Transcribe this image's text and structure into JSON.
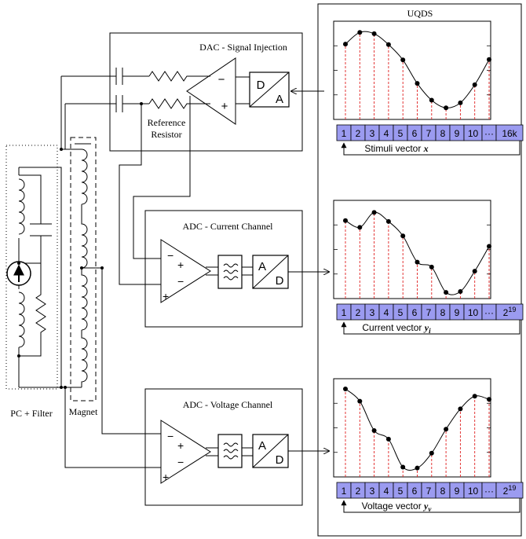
{
  "labels": {
    "uqds": "UQDS",
    "dac": "DAC - Signal Injection",
    "adc_current": "ADC - Current Channel",
    "adc_voltage": "ADC - Voltage Channel",
    "ref1": "Reference",
    "ref2": "Resistor",
    "pc_filter": "PC + Filter",
    "magnet": "Magnet"
  },
  "converters": {
    "dac_top": "D",
    "dac_bottom": "A",
    "adc1_top": "A",
    "adc1_bottom": "D",
    "adc2_top": "A",
    "adc2_bottom": "D"
  },
  "opamp_signs": {
    "minus": "−",
    "plus": "+"
  },
  "vectors": [
    {
      "caption": "Stimuli vector",
      "symbol": "x",
      "subscript": "",
      "cells": [
        "1",
        "2",
        "3",
        "4",
        "5",
        "6",
        "7",
        "8",
        "9",
        "10",
        "···",
        "16k"
      ],
      "samples": [
        0.58,
        0.84,
        0.81,
        0.57,
        0.23,
        -0.29,
        -0.66,
        -0.83,
        -0.72,
        -0.32,
        0.24
      ]
    },
    {
      "caption": "Current vector",
      "symbol": "y",
      "subscript": "i",
      "cells": [
        "1",
        "2",
        "3",
        "4",
        "5",
        "6",
        "7",
        "8",
        "9",
        "10",
        "···",
        "2^19"
      ],
      "samples": [
        0.64,
        0.49,
        0.82,
        0.62,
        0.3,
        -0.28,
        -0.39,
        -0.95,
        -0.93,
        -0.48,
        0.07
      ]
    },
    {
      "caption": "Voltage vector",
      "symbol": "y",
      "subscript": "v",
      "cells": [
        "1",
        "2",
        "3",
        "4",
        "5",
        "6",
        "7",
        "8",
        "9",
        "10",
        "···",
        "2^19"
      ],
      "samples": [
        0.86,
        0.59,
        -0.06,
        -0.25,
        -0.87,
        -0.89,
        -0.56,
        -0.03,
        0.42,
        0.7,
        0.63
      ]
    }
  ]
}
